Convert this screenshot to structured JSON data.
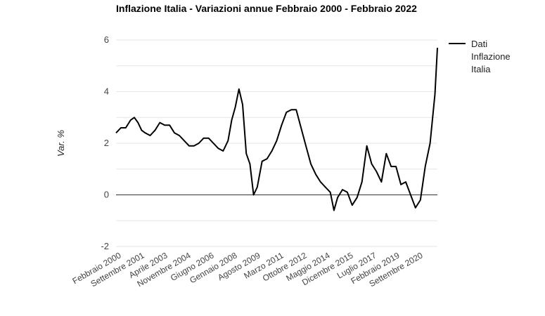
{
  "chart_data": {
    "type": "line",
    "title": "Inflazione Italia - Variazioni annue Febbraio 2000 - Febbraio 2022",
    "xlabel": "",
    "ylabel": "Var. %",
    "ylim": [
      -2,
      6
    ],
    "yticks": [
      -2,
      0,
      2,
      4,
      6
    ],
    "grid": true,
    "legend_position": "right",
    "x_tick_labels": [
      "Febbraio 2000",
      "Settembre 2001",
      "Aprile 2003",
      "Novembre 2004",
      "Giugno 2006",
      "Gennaio 2008",
      "Agosto 2009",
      "Marzo 2011",
      "Ottobre 2012",
      "Maggio 2014",
      "Dicembre 2015",
      "Luglio 2017",
      "Febbraio 2019",
      "Settembre 2020"
    ],
    "x_start": "2000-02",
    "x_end": "2022-02",
    "series": [
      {
        "name": "Dati Inflazione Italia",
        "color": "#000000",
        "points": [
          [
            "2000-02",
            2.4
          ],
          [
            "2000-06",
            2.6
          ],
          [
            "2000-10",
            2.6
          ],
          [
            "2001-02",
            2.9
          ],
          [
            "2001-05",
            3.0
          ],
          [
            "2001-08",
            2.8
          ],
          [
            "2001-11",
            2.5
          ],
          [
            "2002-02",
            2.4
          ],
          [
            "2002-06",
            2.3
          ],
          [
            "2002-10",
            2.5
          ],
          [
            "2003-02",
            2.8
          ],
          [
            "2003-06",
            2.7
          ],
          [
            "2003-10",
            2.7
          ],
          [
            "2004-02",
            2.4
          ],
          [
            "2004-06",
            2.3
          ],
          [
            "2004-10",
            2.1
          ],
          [
            "2005-02",
            1.9
          ],
          [
            "2005-06",
            1.9
          ],
          [
            "2005-10",
            2.0
          ],
          [
            "2006-02",
            2.2
          ],
          [
            "2006-06",
            2.2
          ],
          [
            "2006-10",
            2.0
          ],
          [
            "2007-02",
            1.8
          ],
          [
            "2007-06",
            1.7
          ],
          [
            "2007-10",
            2.1
          ],
          [
            "2008-01",
            2.9
          ],
          [
            "2008-04",
            3.4
          ],
          [
            "2008-07",
            4.1
          ],
          [
            "2008-10",
            3.5
          ],
          [
            "2009-01",
            1.6
          ],
          [
            "2009-04",
            1.2
          ],
          [
            "2009-07",
            0.0
          ],
          [
            "2009-10",
            0.3
          ],
          [
            "2010-02",
            1.3
          ],
          [
            "2010-06",
            1.4
          ],
          [
            "2010-10",
            1.7
          ],
          [
            "2011-02",
            2.1
          ],
          [
            "2011-06",
            2.7
          ],
          [
            "2011-10",
            3.2
          ],
          [
            "2012-02",
            3.3
          ],
          [
            "2012-06",
            3.3
          ],
          [
            "2012-10",
            2.6
          ],
          [
            "2013-02",
            1.9
          ],
          [
            "2013-06",
            1.2
          ],
          [
            "2013-10",
            0.8
          ],
          [
            "2014-02",
            0.5
          ],
          [
            "2014-06",
            0.3
          ],
          [
            "2014-10",
            0.1
          ],
          [
            "2015-01",
            -0.6
          ],
          [
            "2015-04",
            -0.1
          ],
          [
            "2015-08",
            0.2
          ],
          [
            "2015-12",
            0.1
          ],
          [
            "2016-04",
            -0.4
          ],
          [
            "2016-08",
            -0.1
          ],
          [
            "2016-12",
            0.5
          ],
          [
            "2017-04",
            1.9
          ],
          [
            "2017-08",
            1.2
          ],
          [
            "2017-12",
            0.9
          ],
          [
            "2018-04",
            0.5
          ],
          [
            "2018-08",
            1.6
          ],
          [
            "2018-12",
            1.1
          ],
          [
            "2019-04",
            1.1
          ],
          [
            "2019-08",
            0.4
          ],
          [
            "2019-12",
            0.5
          ],
          [
            "2020-04",
            0.0
          ],
          [
            "2020-08",
            -0.5
          ],
          [
            "2020-12",
            -0.2
          ],
          [
            "2021-04",
            1.1
          ],
          [
            "2021-08",
            2.0
          ],
          [
            "2021-12",
            3.9
          ],
          [
            "2022-02",
            5.7
          ]
        ]
      }
    ]
  }
}
